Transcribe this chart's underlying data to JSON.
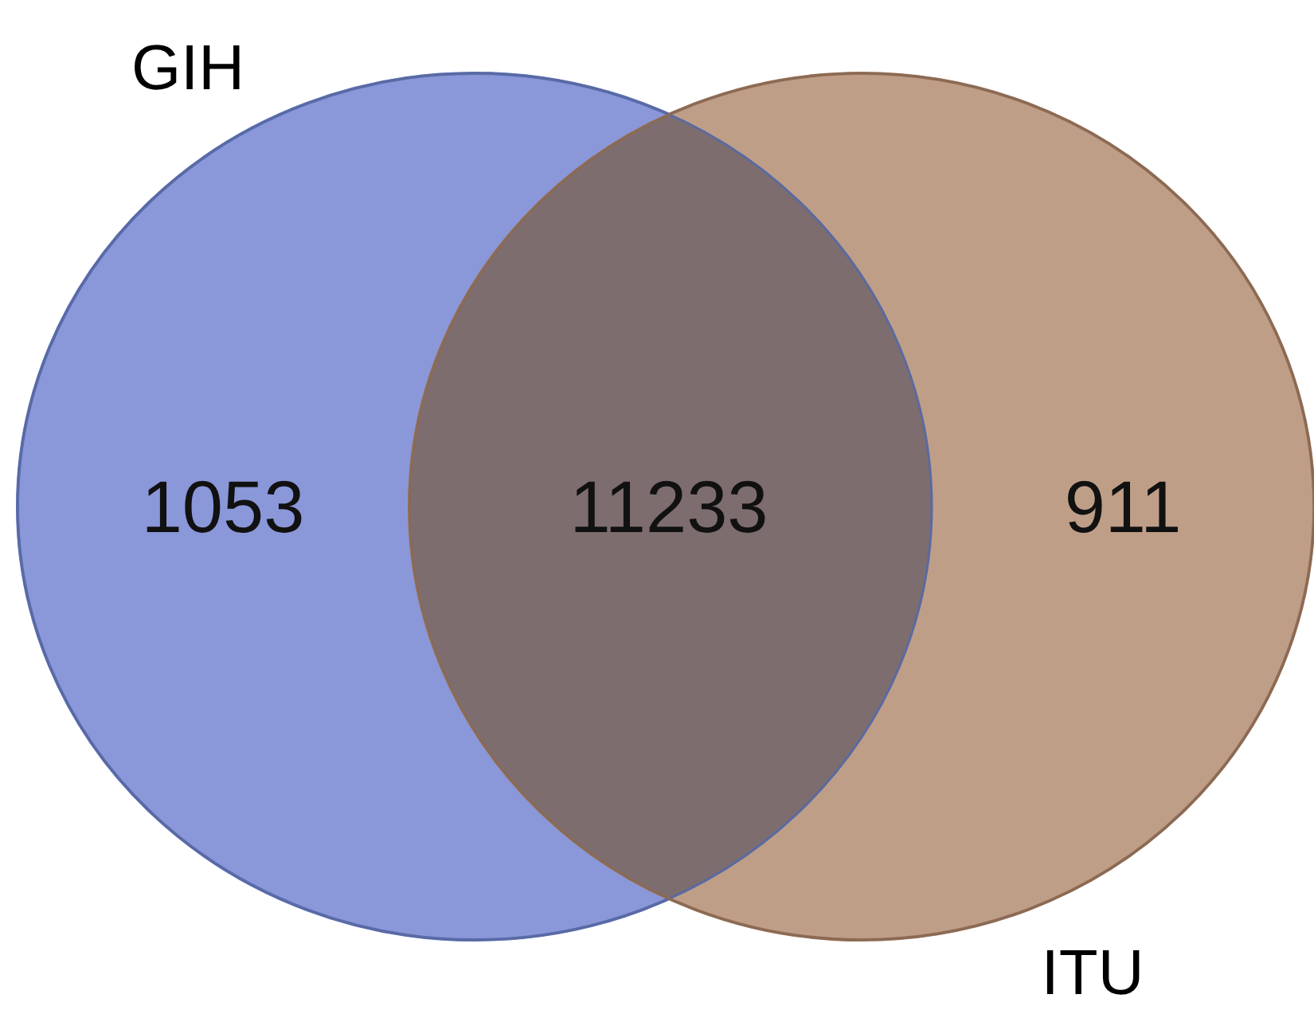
{
  "chart_data": {
    "type": "other",
    "categories": [
      "GIH",
      null,
      "ITU"
    ],
    "values": [
      1053,
      11233,
      911
    ],
    "colors": [
      "#8a97d8",
      "#7e6d6f",
      "#bf9e88"
    ],
    "data_labels": true
  }
}
